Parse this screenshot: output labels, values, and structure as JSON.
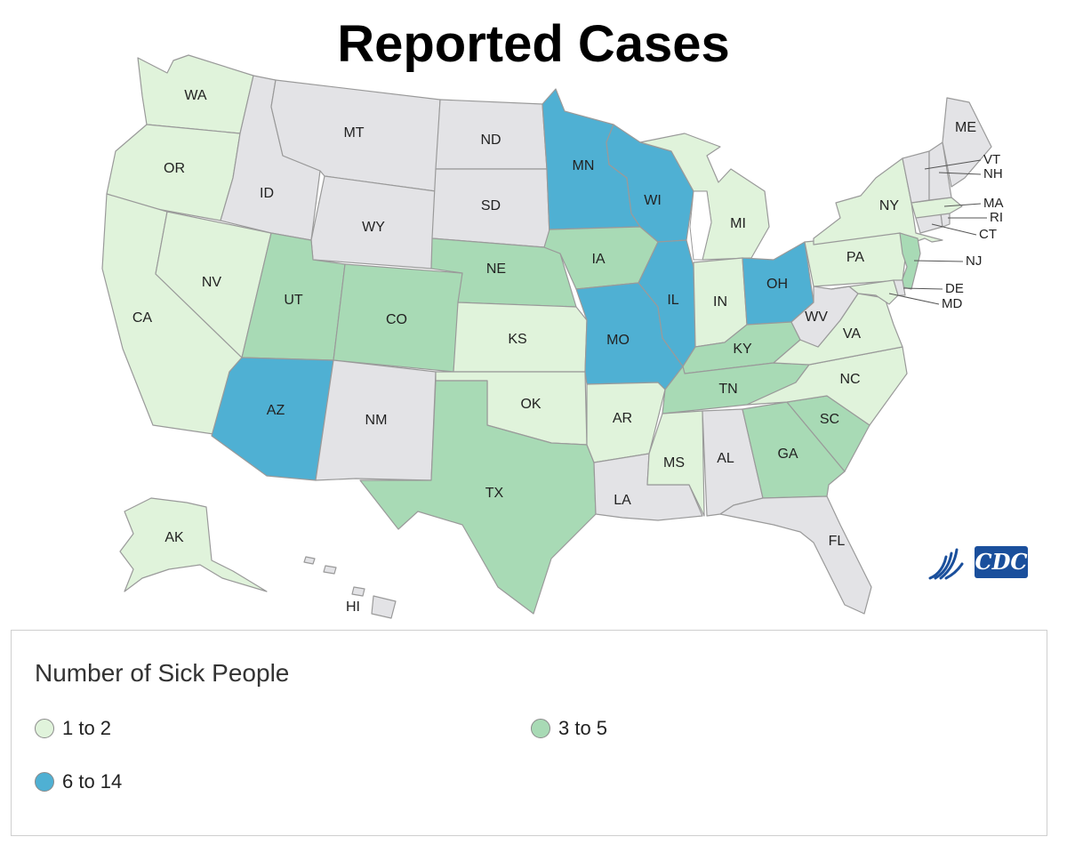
{
  "title": "Reported Cases",
  "legend": {
    "title": "Number of Sick People",
    "items": [
      {
        "label": "1 to 2",
        "color": "#e0f3db"
      },
      {
        "label": "3 to 5",
        "color": "#a8dab5"
      },
      {
        "label": "6 to 14",
        "color": "#4fb0d3"
      }
    ],
    "no_cases_color": "#e3e3e6"
  },
  "logo": {
    "text": "CDC",
    "color": "#1a4f9c"
  },
  "states": [
    {
      "abbr": "WA",
      "category": "1 to 2"
    },
    {
      "abbr": "OR",
      "category": "1 to 2"
    },
    {
      "abbr": "CA",
      "category": "1 to 2"
    },
    {
      "abbr": "NV",
      "category": "1 to 2"
    },
    {
      "abbr": "ID",
      "category": "none"
    },
    {
      "abbr": "MT",
      "category": "none"
    },
    {
      "abbr": "WY",
      "category": "none"
    },
    {
      "abbr": "UT",
      "category": "3 to 5"
    },
    {
      "abbr": "CO",
      "category": "3 to 5"
    },
    {
      "abbr": "AZ",
      "category": "6 to 14"
    },
    {
      "abbr": "NM",
      "category": "none"
    },
    {
      "abbr": "ND",
      "category": "none"
    },
    {
      "abbr": "SD",
      "category": "none"
    },
    {
      "abbr": "NE",
      "category": "3 to 5"
    },
    {
      "abbr": "KS",
      "category": "1 to 2"
    },
    {
      "abbr": "OK",
      "category": "1 to 2"
    },
    {
      "abbr": "TX",
      "category": "3 to 5"
    },
    {
      "abbr": "MN",
      "category": "6 to 14"
    },
    {
      "abbr": "IA",
      "category": "3 to 5"
    },
    {
      "abbr": "MO",
      "category": "6 to 14"
    },
    {
      "abbr": "AR",
      "category": "1 to 2"
    },
    {
      "abbr": "LA",
      "category": "none"
    },
    {
      "abbr": "WI",
      "category": "6 to 14"
    },
    {
      "abbr": "IL",
      "category": "6 to 14"
    },
    {
      "abbr": "MI",
      "category": "1 to 2"
    },
    {
      "abbr": "IN",
      "category": "1 to 2"
    },
    {
      "abbr": "OH",
      "category": "6 to 14"
    },
    {
      "abbr": "KY",
      "category": "3 to 5"
    },
    {
      "abbr": "TN",
      "category": "3 to 5"
    },
    {
      "abbr": "MS",
      "category": "1 to 2"
    },
    {
      "abbr": "AL",
      "category": "none"
    },
    {
      "abbr": "GA",
      "category": "3 to 5"
    },
    {
      "abbr": "FL",
      "category": "none"
    },
    {
      "abbr": "SC",
      "category": "3 to 5"
    },
    {
      "abbr": "NC",
      "category": "1 to 2"
    },
    {
      "abbr": "VA",
      "category": "1 to 2"
    },
    {
      "abbr": "WV",
      "category": "none"
    },
    {
      "abbr": "PA",
      "category": "1 to 2"
    },
    {
      "abbr": "NY",
      "category": "1 to 2"
    },
    {
      "abbr": "NJ",
      "category": "3 to 5"
    },
    {
      "abbr": "DE",
      "category": "none"
    },
    {
      "abbr": "MD",
      "category": "1 to 2"
    },
    {
      "abbr": "CT",
      "category": "none"
    },
    {
      "abbr": "RI",
      "category": "none"
    },
    {
      "abbr": "MA",
      "category": "1 to 2"
    },
    {
      "abbr": "VT",
      "category": "none"
    },
    {
      "abbr": "NH",
      "category": "none"
    },
    {
      "abbr": "ME",
      "category": "none"
    },
    {
      "abbr": "AK",
      "category": "1 to 2"
    },
    {
      "abbr": "HI",
      "category": "none"
    }
  ]
}
